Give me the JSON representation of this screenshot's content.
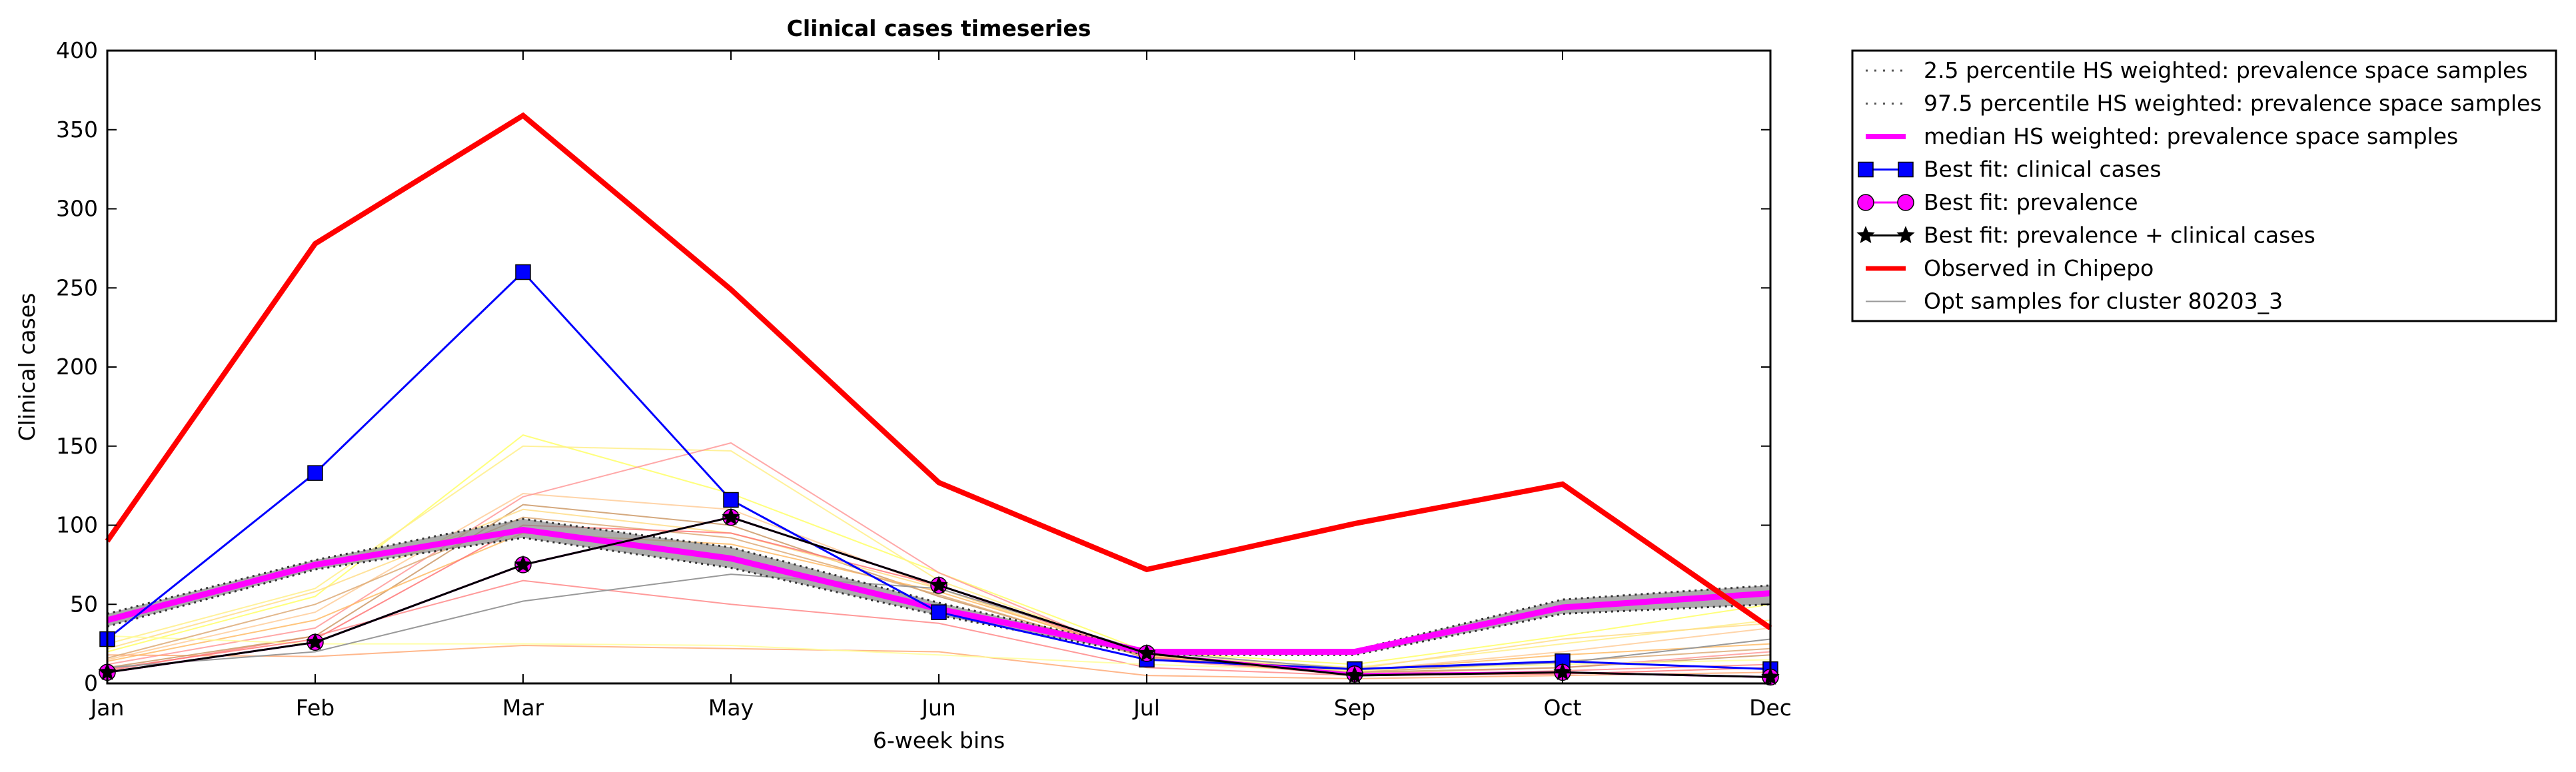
{
  "chart_data": {
    "type": "line",
    "title": "Clinical cases timeseries",
    "xlabel": "6-week bins",
    "ylabel": "Clinical cases",
    "categories": [
      "Jan",
      "Feb",
      "Mar",
      "May",
      "Jun",
      "Jul",
      "Sep",
      "Oct",
      "Dec"
    ],
    "ylim": [
      0,
      400
    ],
    "yticks": [
      0,
      50,
      100,
      150,
      200,
      250,
      300,
      350,
      400
    ],
    "grid": false,
    "legend_position": "outside-right",
    "series": [
      {
        "name": "2.5 percentile HS weighted: prevalence space samples",
        "style": "dotted",
        "color": "#555555",
        "values": [
          36,
          72,
          92,
          73,
          43,
          18,
          18,
          44,
          50
        ]
      },
      {
        "name": "97.5 percentile HS weighted: prevalence space samples",
        "style": "dotted",
        "color": "#555555",
        "values": [
          44,
          78,
          104,
          86,
          51,
          21,
          21,
          53,
          62
        ]
      },
      {
        "name": "median HS weighted: prevalence space samples",
        "style": "thick",
        "color": "#ff00ff",
        "values": [
          40,
          75,
          97,
          79,
          47,
          20,
          20,
          48,
          57
        ]
      },
      {
        "name": "Best fit: clinical cases",
        "style": "square-marker",
        "color": "#0000ff",
        "values": [
          28,
          133,
          260,
          116,
          45,
          15,
          9,
          14,
          9
        ]
      },
      {
        "name": "Best fit: prevalence",
        "style": "circle-marker",
        "color": "#ff00ff",
        "values": [
          7,
          26,
          75,
          105,
          62,
          19,
          6,
          7,
          4
        ]
      },
      {
        "name": "Best fit: prevalence + clinical cases",
        "style": "star-marker",
        "color": "#000000",
        "values": [
          7,
          26,
          75,
          105,
          62,
          19,
          5,
          7,
          4
        ]
      },
      {
        "name": "Observed in Chipepo",
        "style": "thick",
        "color": "#ff0000",
        "values": [
          90,
          278,
          359,
          249,
          127,
          72,
          101,
          126,
          35
        ]
      },
      {
        "name": "Opt samples for cluster 80203_3",
        "style": "thin",
        "color": "#999999",
        "values": [
          10,
          20,
          52,
          69,
          60,
          20,
          9,
          13,
          28
        ]
      }
    ],
    "background_samples": [
      {
        "color": "#ffff66",
        "values": [
          20,
          55,
          157,
          120,
          70,
          20,
          12,
          30,
          50
        ]
      },
      {
        "color": "#ffee88",
        "values": [
          25,
          60,
          150,
          147,
          65,
          18,
          10,
          25,
          40
        ]
      },
      {
        "color": "#ffcc99",
        "values": [
          15,
          45,
          120,
          110,
          60,
          16,
          8,
          20,
          35
        ]
      },
      {
        "color": "#ff9999",
        "values": [
          12,
          35,
          118,
          152,
          70,
          15,
          6,
          10,
          20
        ]
      },
      {
        "color": "#ff8888",
        "values": [
          8,
          30,
          65,
          50,
          38,
          10,
          5,
          8,
          12
        ]
      },
      {
        "color": "#ffaa77",
        "values": [
          18,
          17,
          24,
          22,
          20,
          5,
          3,
          5,
          7
        ]
      },
      {
        "color": "#cc9966",
        "values": [
          10,
          30,
          113,
          100,
          55,
          17,
          7,
          10,
          18
        ]
      },
      {
        "color": "#ffdd88",
        "values": [
          22,
          58,
          110,
          95,
          60,
          17,
          9,
          28,
          38
        ]
      },
      {
        "color": "#ffbb66",
        "values": [
          14,
          40,
          95,
          88,
          58,
          18,
          8,
          18,
          25
        ]
      },
      {
        "color": "#ffff99",
        "values": [
          30,
          25,
          25,
          24,
          18,
          12,
          8,
          12,
          15
        ]
      },
      {
        "color": "#ddaa77",
        "values": [
          16,
          50,
          105,
          92,
          56,
          16,
          7,
          14,
          22
        ]
      },
      {
        "color": "#ff7777",
        "values": [
          9,
          28,
          100,
          95,
          62,
          17,
          5,
          6,
          10
        ]
      }
    ]
  }
}
